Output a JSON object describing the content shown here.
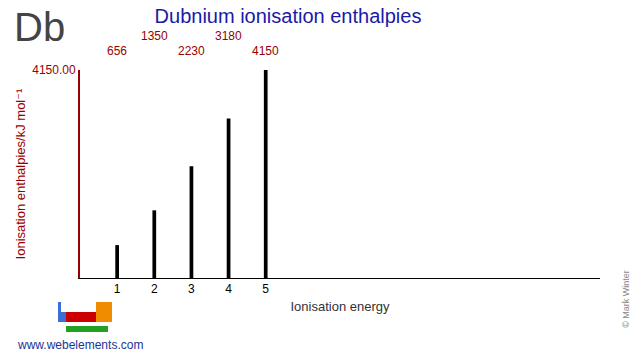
{
  "chart_data": {
    "type": "bar",
    "title": "Dubnium ionisation enthalpies",
    "xlabel": "Ionisation energy",
    "ylabel": "Ionisation enthalpies/kJ mol⁻¹",
    "categories": [
      1,
      2,
      3,
      4,
      5
    ],
    "values": [
      656,
      1350,
      2230,
      3180,
      4150
    ],
    "color": "#000000",
    "xlim": [
      0,
      14
    ],
    "xticks": [
      1,
      2,
      3,
      4,
      5
    ],
    "ylim": [
      0,
      4150
    ],
    "yticks": [
      {
        "value": 4150,
        "label": "4150.00"
      }
    ],
    "grid": false,
    "data_labels": true,
    "annotations": [
      "Db",
      "www.webelements.com",
      "© Mark Winter"
    ]
  }
}
